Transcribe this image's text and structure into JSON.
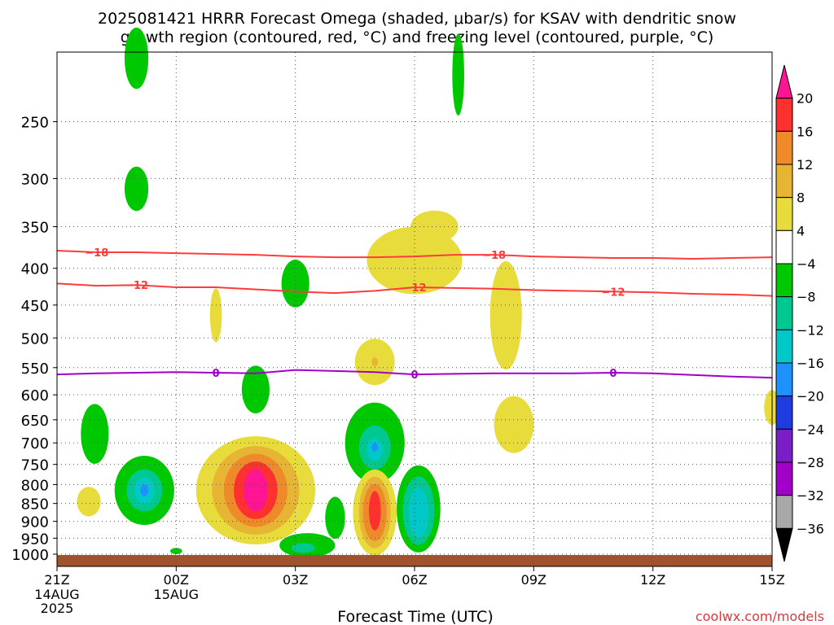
{
  "title_line1": "2025081421 HRRR Forecast Omega (shaded, μbar/s) for KSAV with dendritic snow",
  "title_line2": "growth region (contoured, red, °C) and freezing level (contoured, purple, °C)",
  "xlabel": "Forecast Time (UTC)",
  "credit": "coolwx.com/models",
  "chart_data": {
    "type": "heatmap",
    "x_ticks": [
      {
        "hour": 0,
        "label": "21Z",
        "sub": [
          "14AUG",
          "2025"
        ]
      },
      {
        "hour": 3,
        "label": "00Z",
        "sub": [
          "15AUG"
        ]
      },
      {
        "hour": 6,
        "label": "03Z",
        "sub": []
      },
      {
        "hour": 9,
        "label": "06Z",
        "sub": []
      },
      {
        "hour": 12,
        "label": "09Z",
        "sub": []
      },
      {
        "hour": 15,
        "label": "12Z",
        "sub": []
      },
      {
        "hour": 18,
        "label": "15Z",
        "sub": []
      }
    ],
    "xlim_hours": [
      0,
      18
    ],
    "y_levels": [
      250,
      300,
      350,
      400,
      450,
      500,
      550,
      600,
      650,
      700,
      750,
      800,
      850,
      900,
      950,
      1000
    ],
    "ylim_hPa": [
      200,
      1040
    ],
    "y_scale": "log-pressure, inverted",
    "grid": true,
    "colorbar": {
      "labels": [
        "20",
        "16",
        "12",
        "8",
        "4",
        "−4",
        "−8",
        "−12",
        "−16",
        "−20",
        "−24",
        "−28",
        "−32",
        "−36"
      ],
      "colors": [
        "#ff1493",
        "#ff3030",
        "#ef8a2a",
        "#e7b534",
        "#e8dc3c",
        "#ffffff",
        "#00c800",
        "#00c890",
        "#00c8c8",
        "#1e90ff",
        "#1e3ce0",
        "#7a1ec8",
        "#a000c8",
        "#a8a8a8",
        "#000000"
      ]
    },
    "omega_features": [
      {
        "hour": 2.0,
        "p": 204,
        "v": -6,
        "c": "#00c800",
        "rx": 0.3,
        "rp": 20
      },
      {
        "hour": 2.0,
        "p": 310,
        "v": -6,
        "c": "#00c800",
        "rx": 0.3,
        "rp": 22
      },
      {
        "hour": 10.1,
        "p": 215,
        "v": -6,
        "c": "#00c800",
        "rx": 0.15,
        "rp": 28
      },
      {
        "hour": 6.0,
        "p": 420,
        "v": -6,
        "c": "#00c800",
        "rx": 0.35,
        "rp": 32
      },
      {
        "hour": 4.0,
        "p": 465,
        "v": 6,
        "c": "#e8dc3c",
        "rx": 0.15,
        "rp": 40
      },
      {
        "hour": 9.0,
        "p": 390,
        "v": 6,
        "c": "#e8dc3c",
        "rx": 1.2,
        "rp": 42
      },
      {
        "hour": 9.5,
        "p": 350,
        "v": 6,
        "c": "#e8dc3c",
        "rx": 0.6,
        "rp": 18
      },
      {
        "hour": 11.3,
        "p": 465,
        "v": 6,
        "c": "#e8dc3c",
        "rx": 0.4,
        "rp": 80
      },
      {
        "hour": 8.0,
        "p": 540,
        "v": 6,
        "c": "#e8dc3c",
        "rx": 0.5,
        "rp": 40
      },
      {
        "hour": 8.0,
        "p": 540,
        "v": 10,
        "c": "#e7b534",
        "rx": 0.08,
        "rp": 8
      },
      {
        "hour": 5.0,
        "p": 590,
        "v": -6,
        "c": "#00c800",
        "rx": 0.35,
        "rp": 45
      },
      {
        "hour": 11.5,
        "p": 660,
        "v": 6,
        "c": "#e8dc3c",
        "rx": 0.5,
        "rp": 60
      },
      {
        "hour": 18.0,
        "p": 625,
        "v": 6,
        "c": "#e8dc3c",
        "rx": 0.2,
        "rp": 35
      },
      {
        "hour": 0.95,
        "p": 680,
        "v": -6,
        "c": "#00c800",
        "rx": 0.35,
        "rp": 65
      },
      {
        "hour": 2.2,
        "p": 815,
        "v": -6,
        "c": "#00c800",
        "rx": 0.75,
        "rp": 90
      },
      {
        "hour": 2.2,
        "p": 815,
        "v": -10,
        "c": "#00c890",
        "rx": 0.45,
        "rp": 55
      },
      {
        "hour": 2.2,
        "p": 815,
        "v": -14,
        "c": "#00c8c8",
        "rx": 0.25,
        "rp": 35
      },
      {
        "hour": 2.2,
        "p": 815,
        "v": -18,
        "c": "#1e90ff",
        "rx": 0.1,
        "rp": 15
      },
      {
        "hour": 0.8,
        "p": 845,
        "v": 6,
        "c": "#e8dc3c",
        "rx": 0.3,
        "rp": 40
      },
      {
        "hour": 5.0,
        "p": 815,
        "v": 6,
        "c": "#e8dc3c",
        "rx": 1.5,
        "rp": 140
      },
      {
        "hour": 5.0,
        "p": 815,
        "v": 10,
        "c": "#e7b534",
        "rx": 1.1,
        "rp": 115
      },
      {
        "hour": 5.0,
        "p": 815,
        "v": 14,
        "c": "#ef8a2a",
        "rx": 0.8,
        "rp": 95
      },
      {
        "hour": 5.0,
        "p": 815,
        "v": 18,
        "c": "#ff3030",
        "rx": 0.55,
        "rp": 75
      },
      {
        "hour": 5.0,
        "p": 815,
        "v": 22,
        "c": "#ff1493",
        "rx": 0.3,
        "rp": 55
      },
      {
        "hour": 6.3,
        "p": 972,
        "v": -6,
        "c": "#00c800",
        "rx": 0.7,
        "rp": 38
      },
      {
        "hour": 6.2,
        "p": 980,
        "v": -10,
        "c": "#00c890",
        "rx": 0.3,
        "rp": 15
      },
      {
        "hour": 7.0,
        "p": 890,
        "v": -6,
        "c": "#00c800",
        "rx": 0.25,
        "rp": 60
      },
      {
        "hour": 8.0,
        "p": 700,
        "v": -6,
        "c": "#00c800",
        "rx": 0.75,
        "rp": 90
      },
      {
        "hour": 8.0,
        "p": 710,
        "v": -10,
        "c": "#00c890",
        "rx": 0.4,
        "rp": 50
      },
      {
        "hour": 8.0,
        "p": 715,
        "v": -14,
        "c": "#00c8c8",
        "rx": 0.2,
        "rp": 25
      },
      {
        "hour": 8.0,
        "p": 710,
        "v": -18,
        "c": "#1e90ff",
        "rx": 0.08,
        "rp": 10
      },
      {
        "hour": 9.1,
        "p": 865,
        "v": -6,
        "c": "#00c800",
        "rx": 0.55,
        "rp": 120
      },
      {
        "hour": 9.1,
        "p": 870,
        "v": -10,
        "c": "#00c890",
        "rx": 0.4,
        "rp": 95
      },
      {
        "hour": 9.1,
        "p": 875,
        "v": -14,
        "c": "#00c8c8",
        "rx": 0.25,
        "rp": 70
      },
      {
        "hour": 8.0,
        "p": 875,
        "v": 6,
        "c": "#e8dc3c",
        "rx": 0.55,
        "rp": 120
      },
      {
        "hour": 8.0,
        "p": 875,
        "v": 10,
        "c": "#e7b534",
        "rx": 0.4,
        "rp": 100
      },
      {
        "hour": 8.0,
        "p": 875,
        "v": 14,
        "c": "#ef8a2a",
        "rx": 0.3,
        "rp": 80
      },
      {
        "hour": 8.0,
        "p": 870,
        "v": 18,
        "c": "#ff3030",
        "rx": 0.15,
        "rp": 55
      },
      {
        "hour": 3.0,
        "p": 990,
        "v": -6,
        "c": "#00c800",
        "rx": 0.15,
        "rp": 10
      }
    ],
    "dgz_contours": [
      {
        "label": "−18",
        "color": "#ff3c3c",
        "points": [
          [
            0,
            378
          ],
          [
            1,
            380
          ],
          [
            2,
            380
          ],
          [
            3,
            381
          ],
          [
            4,
            382
          ],
          [
            5,
            383
          ],
          [
            6,
            385
          ],
          [
            7,
            386
          ],
          [
            8,
            386
          ],
          [
            9,
            385
          ],
          [
            10,
            383
          ],
          [
            11,
            383
          ],
          [
            12,
            385
          ],
          [
            13,
            386
          ],
          [
            14,
            387
          ],
          [
            15,
            387
          ],
          [
            16,
            388
          ],
          [
            17,
            387
          ],
          [
            18,
            386
          ]
        ],
        "label_at": [
          1,
          11
        ]
      },
      {
        "label": "−12",
        "color": "#ff3c3c",
        "points": [
          [
            0,
            420
          ],
          [
            1,
            423
          ],
          [
            2,
            422
          ],
          [
            3,
            425
          ],
          [
            4,
            425
          ],
          [
            5,
            428
          ],
          [
            6,
            431
          ],
          [
            7,
            433
          ],
          [
            8,
            430
          ],
          [
            9,
            425
          ],
          [
            10,
            426
          ],
          [
            11,
            427
          ],
          [
            12,
            429
          ],
          [
            13,
            430
          ],
          [
            14,
            431
          ],
          [
            15,
            432
          ],
          [
            16,
            434
          ],
          [
            17,
            435
          ],
          [
            18,
            437
          ]
        ],
        "label_at": [
          2,
          9,
          14
        ]
      }
    ],
    "freezing_contour": {
      "label": "0",
      "color": "#a000c8",
      "points": [
        [
          0,
          562
        ],
        [
          1,
          560
        ],
        [
          2,
          559
        ],
        [
          3,
          558
        ],
        [
          4,
          559
        ],
        [
          5,
          560
        ],
        [
          6,
          554
        ],
        [
          7,
          556
        ],
        [
          8,
          558
        ],
        [
          9,
          562
        ],
        [
          10,
          561
        ],
        [
          11,
          560
        ],
        [
          12,
          560
        ],
        [
          13,
          560
        ],
        [
          14,
          559
        ],
        [
          15,
          560
        ],
        [
          16,
          563
        ],
        [
          17,
          566
        ],
        [
          18,
          568
        ]
      ],
      "label_at": [
        4,
        9,
        14
      ]
    }
  }
}
